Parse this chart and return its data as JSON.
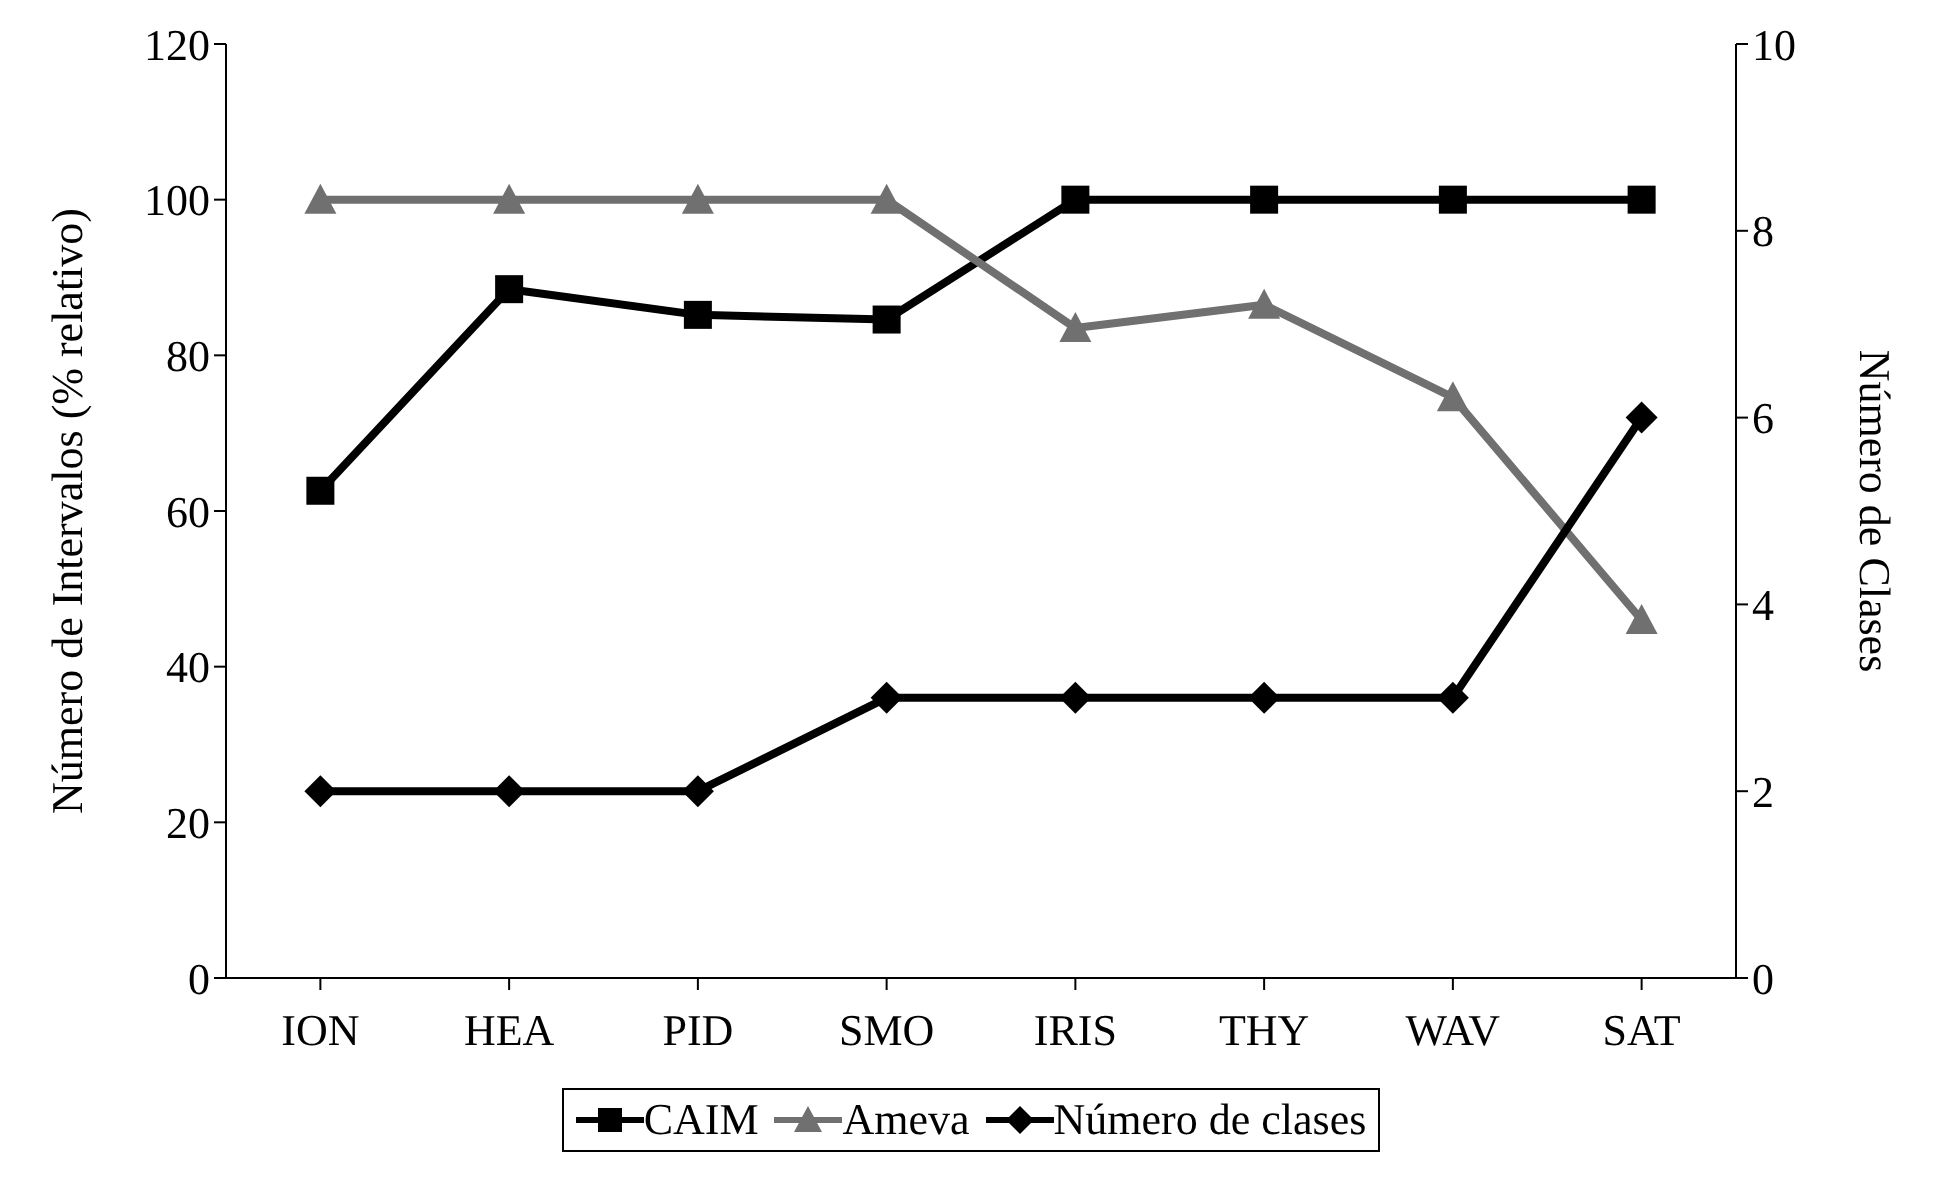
{
  "chart_data": {
    "type": "line",
    "categories": [
      "ION",
      "HEA",
      "PID",
      "SMO",
      "IRIS",
      "THY",
      "WAV",
      "SAT"
    ],
    "ylabel": "Número de Intervalos (% relativo)",
    "y2label": "Número de Clases",
    "ylim": [
      0,
      120
    ],
    "yticks": [
      0,
      20,
      40,
      60,
      80,
      100,
      120
    ],
    "y2lim": [
      0,
      10
    ],
    "y2ticks": [
      0,
      2,
      4,
      6,
      8,
      10
    ],
    "grid": false,
    "legend": "bottom",
    "series": [
      {
        "name": "CAIM",
        "color": "#000000",
        "marker": "square",
        "values": [
          62.6,
          88.5,
          85.2,
          84.6,
          100,
          100,
          100,
          100
        ]
      },
      {
        "name": "Ameva",
        "color": "#707070",
        "marker": "triangle",
        "values": [
          100,
          100,
          100,
          100,
          83.5,
          86.5,
          74.6,
          46
        ]
      },
      {
        "name": "Número de clases",
        "color": "#000000",
        "marker": "diamond",
        "axis": "y2",
        "values": [
          2,
          2,
          2,
          3,
          3,
          3,
          3,
          6
        ]
      }
    ]
  }
}
